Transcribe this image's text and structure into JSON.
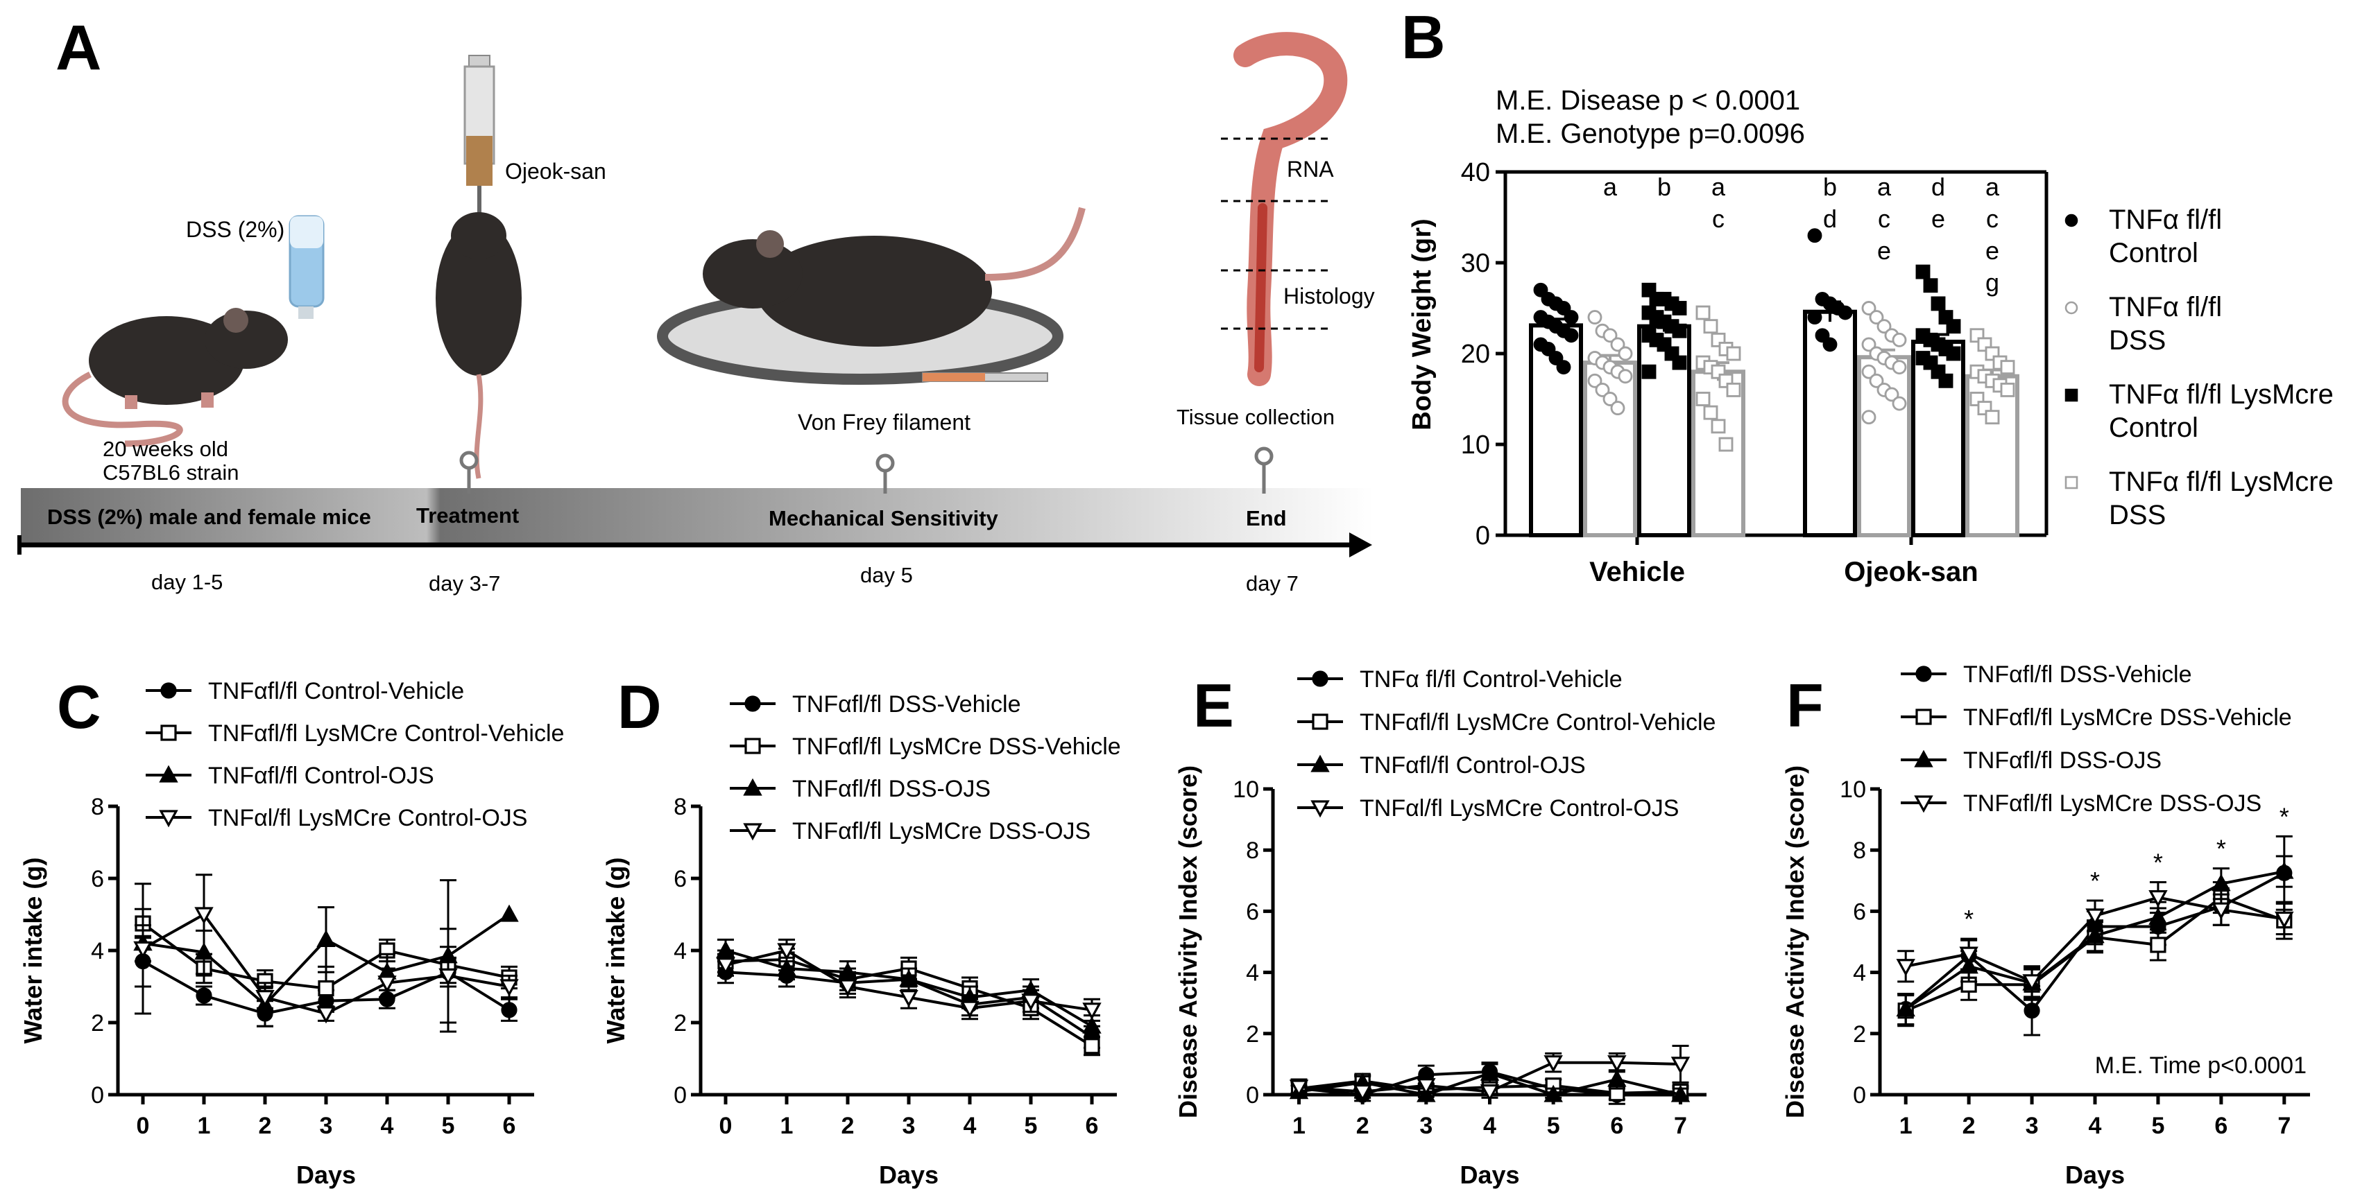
{
  "panel_a": {
    "letter": "A",
    "dss_bottle_label": "DSS (2%)",
    "mouse_age": "20 weeks old",
    "mouse_strain": "C57BL6 strain",
    "syringe_label": "Ojeok-san",
    "filament_label": "Von Frey filament",
    "tissue_label": "Tissue collection",
    "rna_label": "RNA",
    "histology_label": "Histology",
    "stages": [
      "DSS (2%) male and female mice",
      "Treatment",
      "Mechanical Sensitivity",
      "End"
    ],
    "days": [
      "day 1-5",
      "day 3-7",
      "day 5",
      "day 7"
    ]
  },
  "chart_data": [
    {
      "panel": "B",
      "type": "bar",
      "ylabel": "Body Weight (gr)",
      "ylim": [
        0,
        40
      ],
      "yticks": [
        "0",
        "10",
        "20",
        "30",
        "40"
      ],
      "categories": [
        "Vehicle",
        "Ojeok-san"
      ],
      "annotations": [
        "M.E. Disease p < 0.0001",
        "M.E. Genotype p=0.0096"
      ],
      "series": [
        {
          "name": "TNFα fl/fl Control",
          "label_lines": [
            "TNFα fl/fl",
            "Control"
          ],
          "color": "#000000",
          "marker": "filled-circle",
          "values": [
            23.1,
            24.6
          ],
          "sem": [
            0.7,
            1.1
          ],
          "letters": [
            [
              "",
              ""
            ],
            [
              "b",
              "d"
            ]
          ],
          "points": [
            [
              27,
              26,
              25.5,
              25,
              24,
              24,
              23.5,
              23,
              22.5,
              22,
              21,
              20.5,
              19.5,
              18.5
            ],
            [
              33,
              26,
              25.5,
              25,
              24.5,
              24,
              22,
              21
            ]
          ]
        },
        {
          "name": "TNFα fl/fl DSS",
          "label_lines": [
            "TNFα fl/fl",
            "DSS"
          ],
          "color": "#a0a0a0",
          "marker": "open-circle",
          "values": [
            19.0,
            19.6
          ],
          "sem": [
            0.8,
            0.8
          ],
          "letters": [
            [
              "a"
            ],
            [
              "a",
              "c",
              "e"
            ]
          ],
          "points": [
            [
              24,
              22.5,
              22,
              21,
              20,
              19.5,
              19,
              18.5,
              18,
              17.5,
              17,
              16,
              15,
              14
            ],
            [
              25,
              24,
              23,
              22,
              21.5,
              21,
              20,
              19.5,
              19,
              18.5,
              18,
              17,
              16,
              15.5,
              14.5,
              13
            ]
          ]
        },
        {
          "name": "TNFα fl/fl LysMcre Control",
          "label_lines": [
            "TNFα fl/fl LysMcre",
            "Control"
          ],
          "color": "#000000",
          "marker": "filled-square",
          "values": [
            23.0,
            21.3
          ],
          "sem": [
            0.6,
            0.8
          ],
          "letters": [
            [
              "b"
            ],
            [
              "d",
              "e"
            ]
          ],
          "points": [
            [
              27,
              26,
              26,
              25.5,
              25,
              24.5,
              24,
              23.5,
              23,
              22.5,
              22,
              21.5,
              21,
              20,
              19,
              18
            ],
            [
              29,
              27.5,
              25.5,
              24,
              23,
              22,
              21.5,
              21,
              20.5,
              20,
              19.5,
              19,
              18,
              17
            ]
          ]
        },
        {
          "name": "TNFα fl/fl LysMcre DSS",
          "label_lines": [
            "TNFα fl/fl LysMcre",
            "DSS"
          ],
          "color": "#a0a0a0",
          "marker": "open-square",
          "values": [
            18.0,
            17.5
          ],
          "sem": [
            1.0,
            0.7
          ],
          "letters": [
            [
              "a",
              "c"
            ],
            [
              "a",
              "c",
              "e",
              "g"
            ]
          ],
          "points": [
            [
              24.5,
              23,
              21.5,
              20.5,
              20,
              19,
              18.5,
              18,
              17,
              16,
              15,
              13.5,
              12,
              10
            ],
            [
              22,
              21,
              20,
              19,
              18.5,
              18,
              17.5,
              17,
              16.5,
              16,
              15,
              14,
              13
            ]
          ]
        }
      ]
    },
    {
      "panel": "C",
      "type": "line",
      "xlabel": "Days",
      "ylabel": "Water intake (g)",
      "x": [
        0,
        1,
        2,
        3,
        4,
        5,
        6
      ],
      "ylim": [
        0,
        8
      ],
      "yticks": [
        "0",
        "2",
        "4",
        "6",
        "8"
      ],
      "xticks": [
        "0",
        "1",
        "2",
        "3",
        "4",
        "5",
        "6"
      ],
      "series": [
        {
          "name": "TNFαfl/fl Control-Vehicle",
          "marker": "filled-circle",
          "values": [
            3.7,
            2.75,
            2.25,
            2.6,
            2.65,
            3.4,
            2.35
          ],
          "err": [
            0.7,
            0.25,
            0.35,
            0.3,
            0.25,
            0.4,
            0.3
          ]
        },
        {
          "name": "TNFαfl/fl LysMCre Control-Vehicle",
          "marker": "open-square",
          "values": [
            4.75,
            3.5,
            3.15,
            2.95,
            4.0,
            3.6,
            3.25
          ],
          "err": [
            0.4,
            0.4,
            0.3,
            0.6,
            0.3,
            0.5,
            0.3
          ]
        },
        {
          "name": "TNFαfl/fl Control-OJS",
          "marker": "filled-triangle",
          "values": [
            4.2,
            3.95,
            2.5,
            4.3,
            3.4,
            3.85,
            5.0
          ],
          "err": [
            0.5,
            0.6,
            0.6,
            0.9,
            0.5,
            2.1,
            0.0
          ]
        },
        {
          "name": "TNFαl/fl LysMCre Control-OJS",
          "marker": "open-triangle-down",
          "values": [
            4.05,
            5.0,
            2.7,
            2.25,
            3.1,
            3.3,
            3.0
          ],
          "err": [
            1.8,
            1.1,
            0.3,
            0.2,
            0.4,
            1.3,
            0.3
          ]
        }
      ]
    },
    {
      "panel": "D",
      "type": "line",
      "xlabel": "Days",
      "ylabel": "Water intake (g)",
      "x": [
        0,
        1,
        2,
        3,
        4,
        5,
        6
      ],
      "ylim": [
        0,
        8
      ],
      "yticks": [
        "0",
        "2",
        "4",
        "6",
        "8"
      ],
      "xticks": [
        "0",
        "1",
        "2",
        "3",
        "4",
        "5",
        "6"
      ],
      "series": [
        {
          "name": "TNFαfl/fl DSS-Vehicle",
          "marker": "filled-circle",
          "values": [
            3.4,
            3.3,
            3.1,
            3.2,
            2.5,
            2.7,
            1.6
          ],
          "err": [
            0.3,
            0.3,
            0.3,
            0.3,
            0.3,
            0.3,
            0.3
          ]
        },
        {
          "name": "TNFαfl/fl LysMCre DSS-Vehicle",
          "marker": "open-square",
          "values": [
            3.7,
            3.75,
            3.2,
            3.5,
            2.95,
            2.4,
            1.35
          ],
          "err": [
            0.3,
            0.3,
            0.3,
            0.3,
            0.3,
            0.3,
            0.25
          ]
        },
        {
          "name": "TNFαfl/fl DSS-OJS",
          "marker": "filled-triangle",
          "values": [
            4.0,
            3.5,
            3.4,
            3.2,
            2.7,
            2.9,
            1.9
          ],
          "err": [
            0.3,
            0.3,
            0.3,
            0.3,
            0.3,
            0.3,
            0.3
          ]
        },
        {
          "name": "TNFαfl/fl LysMCre DSS-OJS",
          "marker": "open-triangle-down",
          "values": [
            3.6,
            4.0,
            3.0,
            2.7,
            2.4,
            2.6,
            2.35
          ],
          "err": [
            0.3,
            0.3,
            0.3,
            0.3,
            0.3,
            0.3,
            0.3
          ]
        }
      ]
    },
    {
      "panel": "E",
      "type": "line",
      "xlabel": "Days",
      "ylabel": "Disease Activity Index (score)",
      "x": [
        1,
        2,
        3,
        4,
        5,
        6,
        7
      ],
      "ylim": [
        0,
        10
      ],
      "yticks": [
        "0",
        "2",
        "4",
        "6",
        "8",
        "10"
      ],
      "xticks": [
        "1",
        "2",
        "3",
        "4",
        "5",
        "6",
        "7"
      ],
      "series": [
        {
          "name": "TNFα fl/fl Control-Vehicle",
          "marker": "filled-circle",
          "values": [
            0.2,
            0.0,
            0.65,
            0.75,
            0.2,
            0.0,
            0.05
          ],
          "err": [
            0.3,
            0.2,
            0.3,
            0.3,
            0.3,
            0.3,
            0.2
          ]
        },
        {
          "name": "TNFαfl/fl LysMCre Control-Vehicle",
          "marker": "open-square",
          "values": [
            0.2,
            0.45,
            0.15,
            0.25,
            0.3,
            0.05,
            0.1
          ],
          "err": [
            0.2,
            0.2,
            0.2,
            0.2,
            0.2,
            0.2,
            0.2
          ]
        },
        {
          "name": "TNFαfl/fl Control-OJS",
          "marker": "filled-triangle",
          "values": [
            0.1,
            0.4,
            0.0,
            0.7,
            0.0,
            0.5,
            0.0
          ],
          "err": [
            0.2,
            0.2,
            0.2,
            0.3,
            0.2,
            0.3,
            0.2
          ]
        },
        {
          "name": "TNFαl/fl LysMCre Control-OJS",
          "marker": "open-triangle-down",
          "values": [
            0.25,
            0.1,
            0.3,
            0.1,
            1.05,
            1.05,
            1.0
          ],
          "err": [
            0.2,
            0.2,
            0.2,
            0.2,
            0.3,
            0.3,
            0.6
          ]
        }
      ]
    },
    {
      "panel": "F",
      "type": "line",
      "xlabel": "Days",
      "ylabel": "Disease Activity Index (score)",
      "x": [
        1,
        2,
        3,
        4,
        5,
        6,
        7
      ],
      "ylim": [
        0,
        10
      ],
      "yticks": [
        "0",
        "2",
        "4",
        "6",
        "8",
        "10"
      ],
      "xticks": [
        "1",
        "2",
        "3",
        "4",
        "5",
        "6",
        "7"
      ],
      "annotation": "M.E. Time p<0.0001",
      "significance": [
        "",
        "*",
        "",
        "*",
        "*",
        "*",
        "*"
      ],
      "series": [
        {
          "name": "TNFαfl/fl DSS-Vehicle",
          "marker": "filled-circle",
          "values": [
            2.8,
            4.55,
            2.75,
            5.5,
            5.5,
            6.15,
            7.25
          ],
          "err": [
            0.5,
            0.5,
            0.8,
            0.5,
            0.6,
            0.6,
            1.2
          ]
        },
        {
          "name": "TNFαfl/fl LysMCre DSS-Vehicle",
          "marker": "open-square",
          "values": [
            2.75,
            3.6,
            3.6,
            5.15,
            4.9,
            6.45,
            5.7
          ],
          "err": [
            0.5,
            0.5,
            0.5,
            0.5,
            0.5,
            0.5,
            0.6
          ]
        },
        {
          "name": "TNFαfl/fl DSS-OJS",
          "marker": "filled-triangle",
          "values": [
            2.8,
            4.2,
            3.65,
            5.2,
            5.8,
            6.9,
            7.3
          ],
          "err": [
            0.5,
            0.5,
            0.5,
            0.5,
            0.5,
            0.5,
            0.5
          ]
        },
        {
          "name": "TNFαfl/fl LysMCre DSS-OJS",
          "marker": "open-triangle-down",
          "values": [
            4.2,
            4.6,
            3.7,
            5.85,
            6.45,
            6.05,
            5.75
          ],
          "err": [
            0.5,
            0.5,
            0.5,
            0.5,
            0.5,
            0.5,
            0.5
          ]
        }
      ]
    }
  ]
}
